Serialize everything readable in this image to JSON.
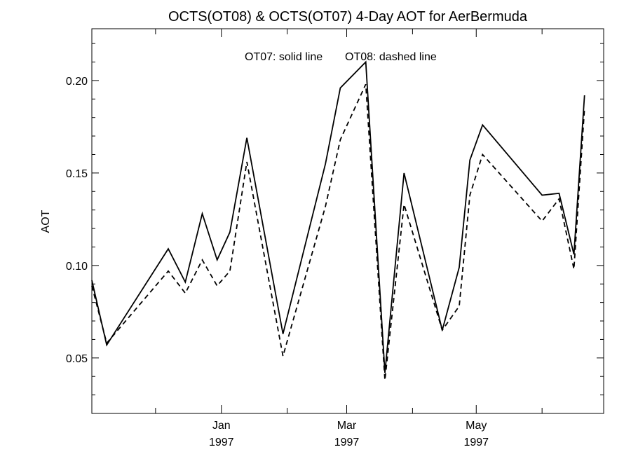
{
  "chart_data": {
    "type": "line",
    "title": "OCTS(OT08) & OCTS(OT07) 4-Day AOT for AerBermuda",
    "annotation_solid": "OT07: solid line",
    "annotation_dashed": "OT08: dashed line",
    "ylabel": "AOT",
    "xlabel": "",
    "xlim": [
      "1996-11-01",
      "1997-06-30"
    ],
    "ylim": [
      0.02,
      0.228
    ],
    "y_ticks": [
      {
        "value": 0.05,
        "label": "0.05"
      },
      {
        "value": 0.1,
        "label": "0.10"
      },
      {
        "value": 0.15,
        "label": "0.15"
      },
      {
        "value": 0.2,
        "label": "0.20"
      }
    ],
    "x_ticks": [
      {
        "date": "1997-01-01",
        "line1": "Jan",
        "line2": "1997"
      },
      {
        "date": "1997-03-01",
        "line1": "Mar",
        "line2": "1997"
      },
      {
        "date": "1997-05-01",
        "line1": "May",
        "line2": "1997"
      }
    ],
    "x_minor_ticks": [
      "1996-12-01",
      "1997-02-01",
      "1997-04-01",
      "1997-06-01"
    ],
    "grid": false,
    "series": [
      {
        "name": "OT07",
        "style": "solid",
        "color": "#000000",
        "points": [
          [
            "1996-11-01",
            0.092
          ],
          [
            "1996-11-08",
            0.057
          ],
          [
            "1996-12-07",
            0.109
          ],
          [
            "1996-12-15",
            0.091
          ],
          [
            "1996-12-23",
            0.128
          ],
          [
            "1996-12-30",
            0.103
          ],
          [
            "1997-01-05",
            0.118
          ],
          [
            "1997-01-13",
            0.169
          ],
          [
            "1997-01-30",
            0.063
          ],
          [
            "1997-02-19",
            0.155
          ],
          [
            "1997-02-26",
            0.196
          ],
          [
            "1997-03-10",
            0.21
          ],
          [
            "1997-03-19",
            0.042
          ],
          [
            "1997-03-28",
            0.15
          ],
          [
            "1997-04-15",
            0.065
          ],
          [
            "1997-04-23",
            0.099
          ],
          [
            "1997-04-28",
            0.157
          ],
          [
            "1997-05-04",
            0.176
          ],
          [
            "1997-06-01",
            0.138
          ],
          [
            "1997-06-09",
            0.139
          ],
          [
            "1997-06-16",
            0.106
          ],
          [
            "1997-06-21",
            0.192
          ]
        ]
      },
      {
        "name": "OT08",
        "style": "dashed",
        "color": "#000000",
        "points": [
          [
            "1996-11-01",
            0.089
          ],
          [
            "1996-11-08",
            0.058
          ],
          [
            "1996-12-07",
            0.097
          ],
          [
            "1996-12-15",
            0.085
          ],
          [
            "1996-12-23",
            0.103
          ],
          [
            "1996-12-30",
            0.089
          ],
          [
            "1997-01-05",
            0.097
          ],
          [
            "1997-01-13",
            0.156
          ],
          [
            "1997-01-30",
            0.051
          ],
          [
            "1997-02-19",
            0.132
          ],
          [
            "1997-02-26",
            0.168
          ],
          [
            "1997-03-10",
            0.198
          ],
          [
            "1997-03-19",
            0.038
          ],
          [
            "1997-03-28",
            0.133
          ],
          [
            "1997-04-15",
            0.065
          ],
          [
            "1997-04-23",
            0.078
          ],
          [
            "1997-04-28",
            0.138
          ],
          [
            "1997-05-04",
            0.16
          ],
          [
            "1997-06-01",
            0.124
          ],
          [
            "1997-06-09",
            0.136
          ],
          [
            "1997-06-16",
            0.098
          ],
          [
            "1997-06-21",
            0.185
          ]
        ]
      }
    ]
  }
}
